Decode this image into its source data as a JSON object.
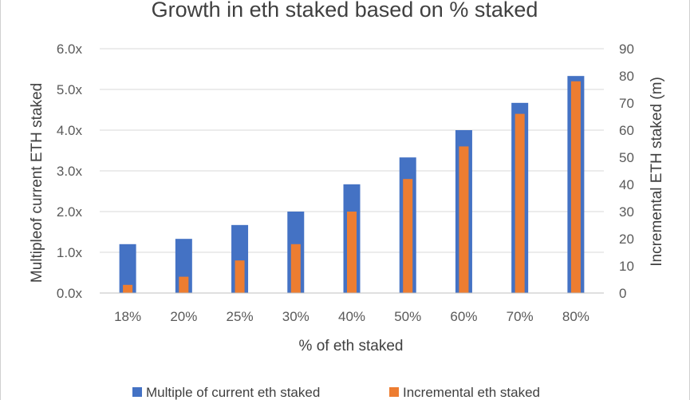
{
  "chart_data": {
    "type": "bar",
    "title": "Growth in eth staked based on % staked",
    "xlabel": "% of eth staked",
    "ylabel_left": "Multipleof current ETH staked",
    "ylabel_right": "Incremental ETH staked (m)",
    "categories": [
      "18%",
      "20%",
      "25%",
      "30%",
      "40%",
      "50%",
      "60%",
      "70%",
      "80%"
    ],
    "left_axis": {
      "ylim": [
        0,
        6
      ],
      "ticks": [
        "0.0x",
        "1.0x",
        "2.0x",
        "3.0x",
        "4.0x",
        "5.0x",
        "6.0x"
      ]
    },
    "right_axis": {
      "ylim": [
        0,
        90
      ],
      "ticks": [
        "0",
        "10",
        "20",
        "30",
        "40",
        "50",
        "60",
        "70",
        "80",
        "90"
      ]
    },
    "series": [
      {
        "name": "Multiple of current eth staked",
        "axis": "left",
        "color": "#4472c4",
        "values": [
          1.2,
          1.33,
          1.67,
          2.0,
          2.67,
          3.33,
          4.0,
          4.67,
          5.33
        ]
      },
      {
        "name": "Incremental eth staked",
        "axis": "right",
        "color": "#ed7d31",
        "values": [
          3,
          6,
          12,
          18,
          30,
          42,
          54,
          66,
          78
        ]
      }
    ],
    "grid": true,
    "legend": "bottom"
  }
}
